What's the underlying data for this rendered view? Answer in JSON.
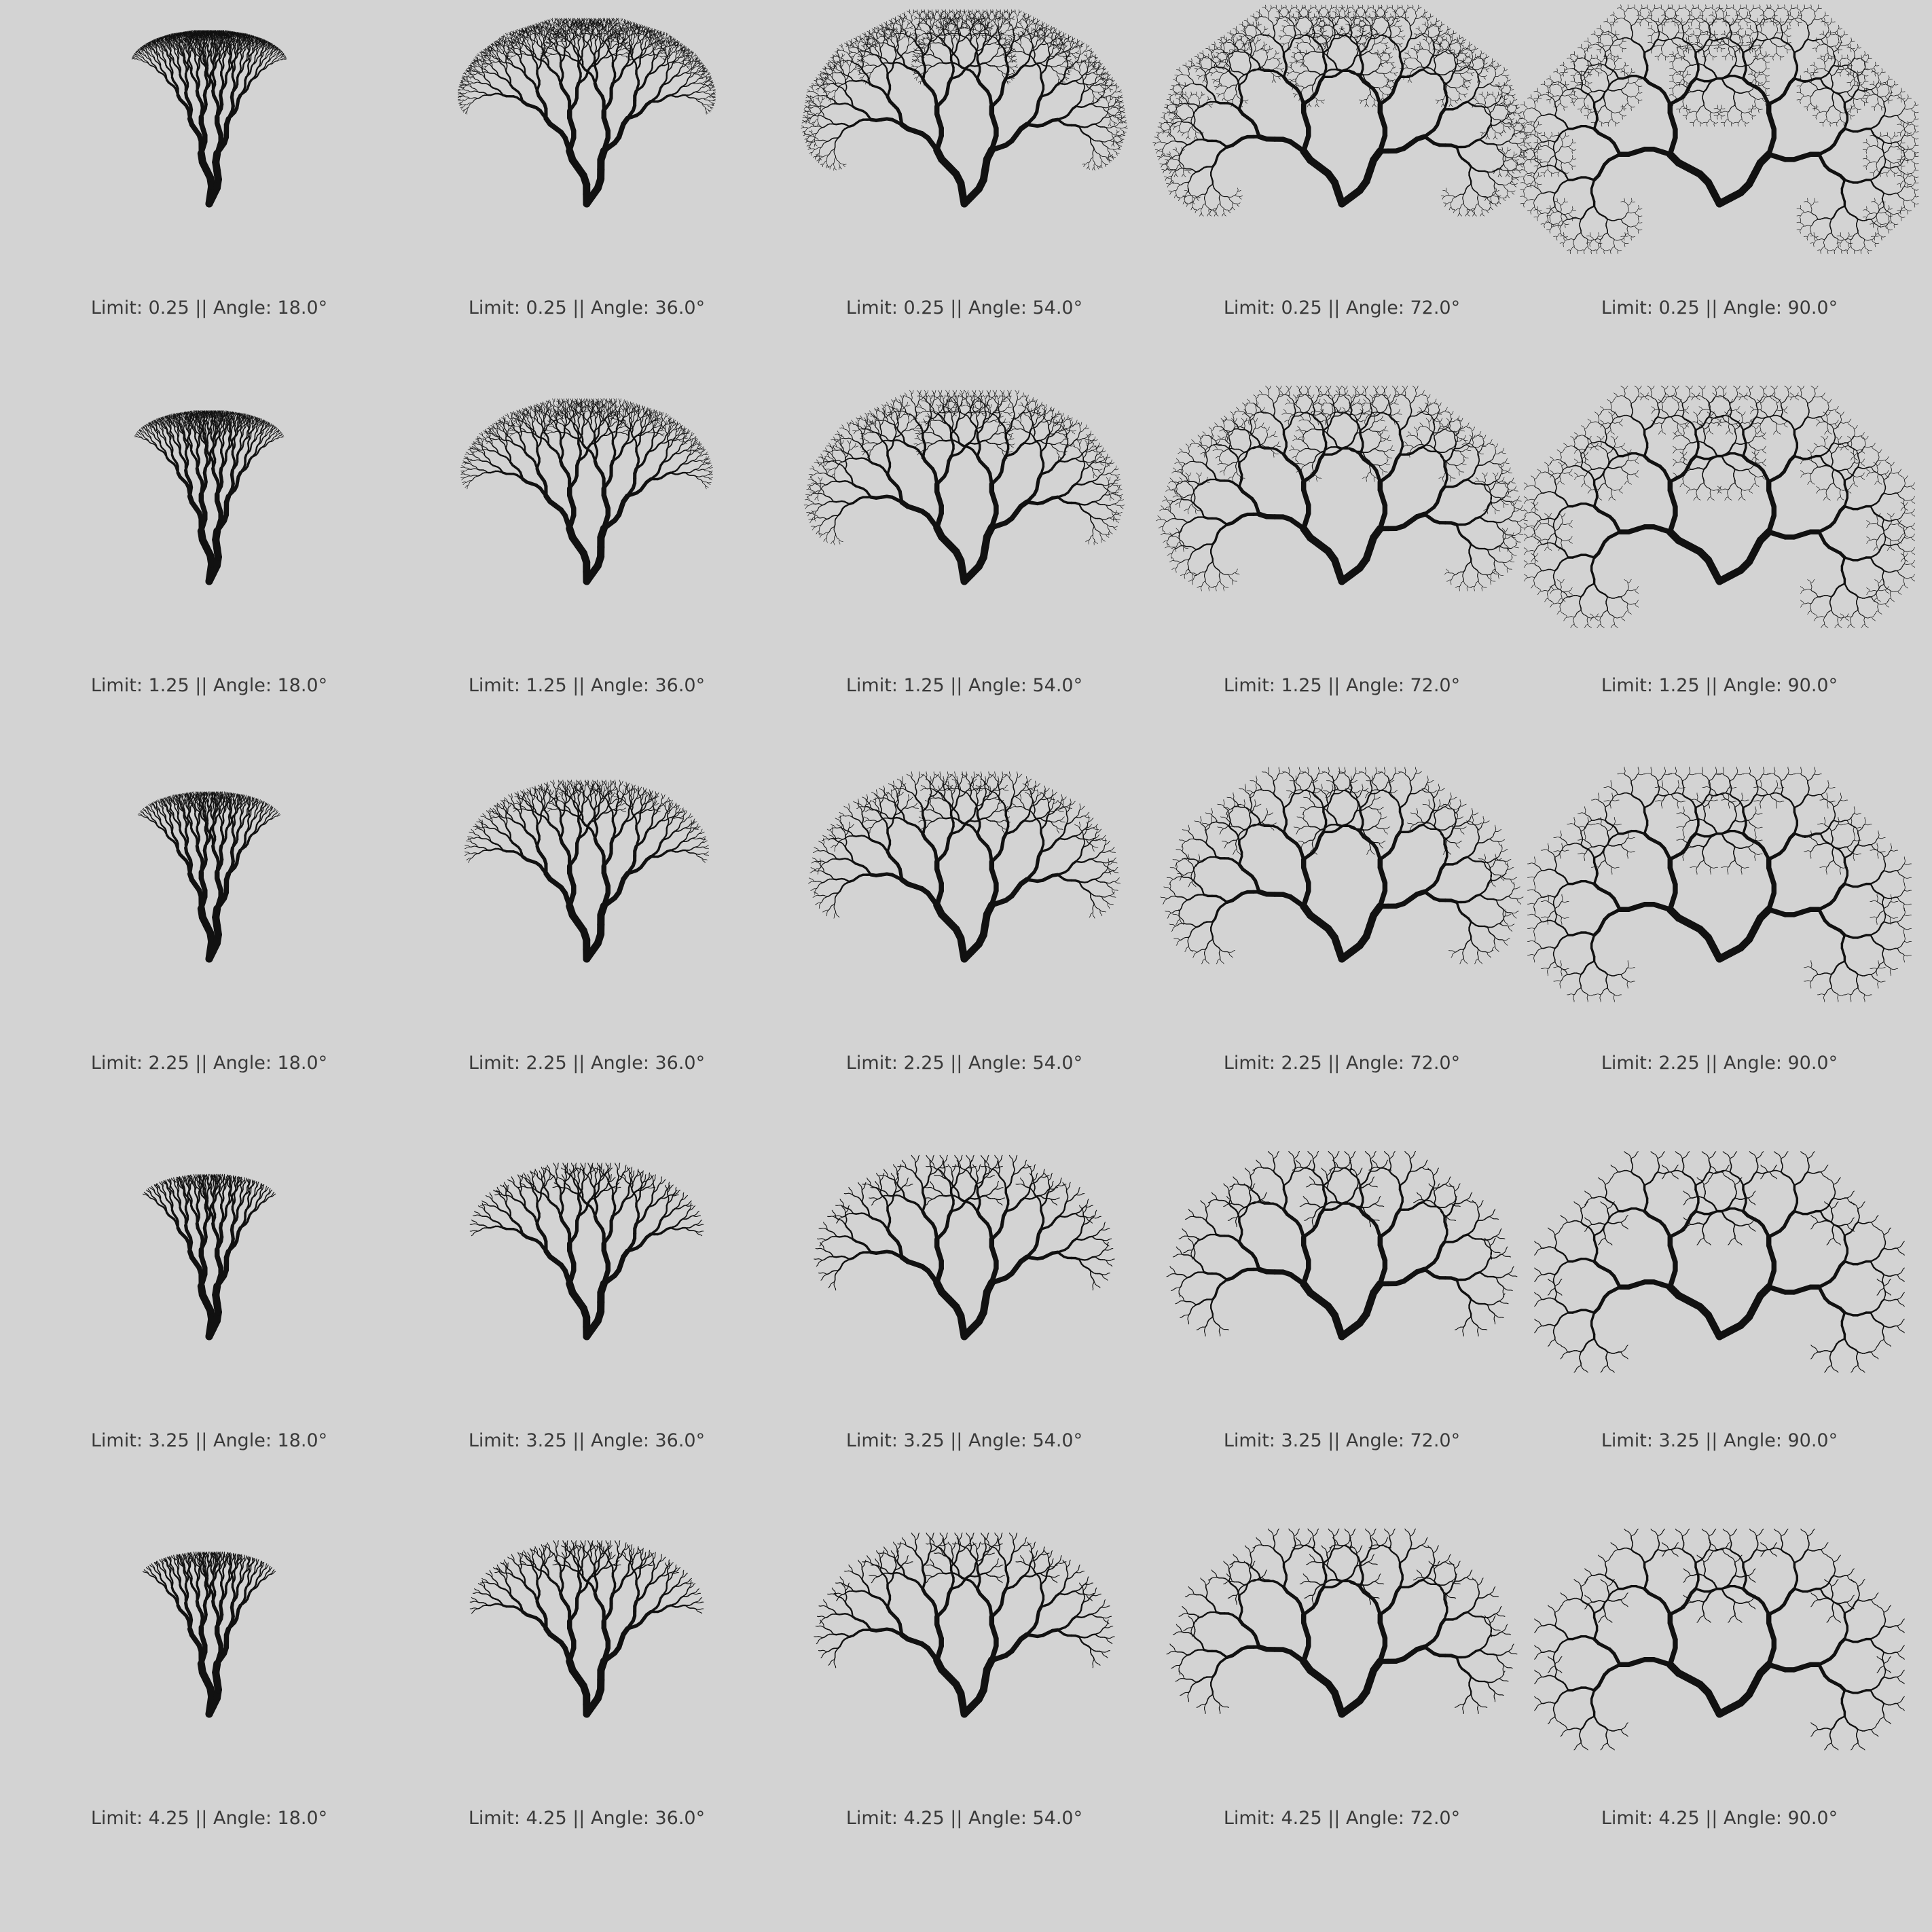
{
  "figure": {
    "label_template": "Limit: {limit} || Angle: {angle}°",
    "limits": [
      "0.25",
      "1.25",
      "2.25",
      "3.25",
      "4.25"
    ],
    "angles": [
      "18.0",
      "36.0",
      "54.0",
      "72.0",
      "90.0"
    ],
    "panels": [
      [
        {
          "caption": "Limit: 0.25 || Angle: 18.0°"
        },
        {
          "caption": "Limit: 0.25 || Angle: 36.0°"
        },
        {
          "caption": "Limit: 0.25 || Angle: 54.0°"
        },
        {
          "caption": "Limit: 0.25 || Angle: 72.0°"
        },
        {
          "caption": "Limit: 0.25 || Angle: 90.0°"
        }
      ],
      [
        {
          "caption": "Limit: 1.25 || Angle: 18.0°"
        },
        {
          "caption": "Limit: 1.25 || Angle: 36.0°"
        },
        {
          "caption": "Limit: 1.25 || Angle: 54.0°"
        },
        {
          "caption": "Limit: 1.25 || Angle: 72.0°"
        },
        {
          "caption": "Limit: 1.25 || Angle: 90.0°"
        }
      ],
      [
        {
          "caption": "Limit: 2.25 || Angle: 18.0°"
        },
        {
          "caption": "Limit: 2.25 || Angle: 36.0°"
        },
        {
          "caption": "Limit: 2.25 || Angle: 54.0°"
        },
        {
          "caption": "Limit: 2.25 || Angle: 72.0°"
        },
        {
          "caption": "Limit: 2.25 || Angle: 90.0°"
        }
      ],
      [
        {
          "caption": "Limit: 3.25 || Angle: 18.0°"
        },
        {
          "caption": "Limit: 3.25 || Angle: 36.0°"
        },
        {
          "caption": "Limit: 3.25 || Angle: 54.0°"
        },
        {
          "caption": "Limit: 3.25 || Angle: 72.0°"
        },
        {
          "caption": "Limit: 3.25 || Angle: 90.0°"
        }
      ],
      [
        {
          "caption": "Limit: 4.25 || Angle: 18.0°"
        },
        {
          "caption": "Limit: 4.25 || Angle: 36.0°"
        },
        {
          "caption": "Limit: 4.25 || Angle: 54.0°"
        },
        {
          "caption": "Limit: 4.25 || Angle: 72.0°"
        },
        {
          "caption": "Limit: 4.25 || Angle: 90.0°"
        }
      ]
    ]
  },
  "colors": {
    "background": "#d3d3d3",
    "tree": "#111111",
    "caption_text": "#3a3a3a"
  }
}
